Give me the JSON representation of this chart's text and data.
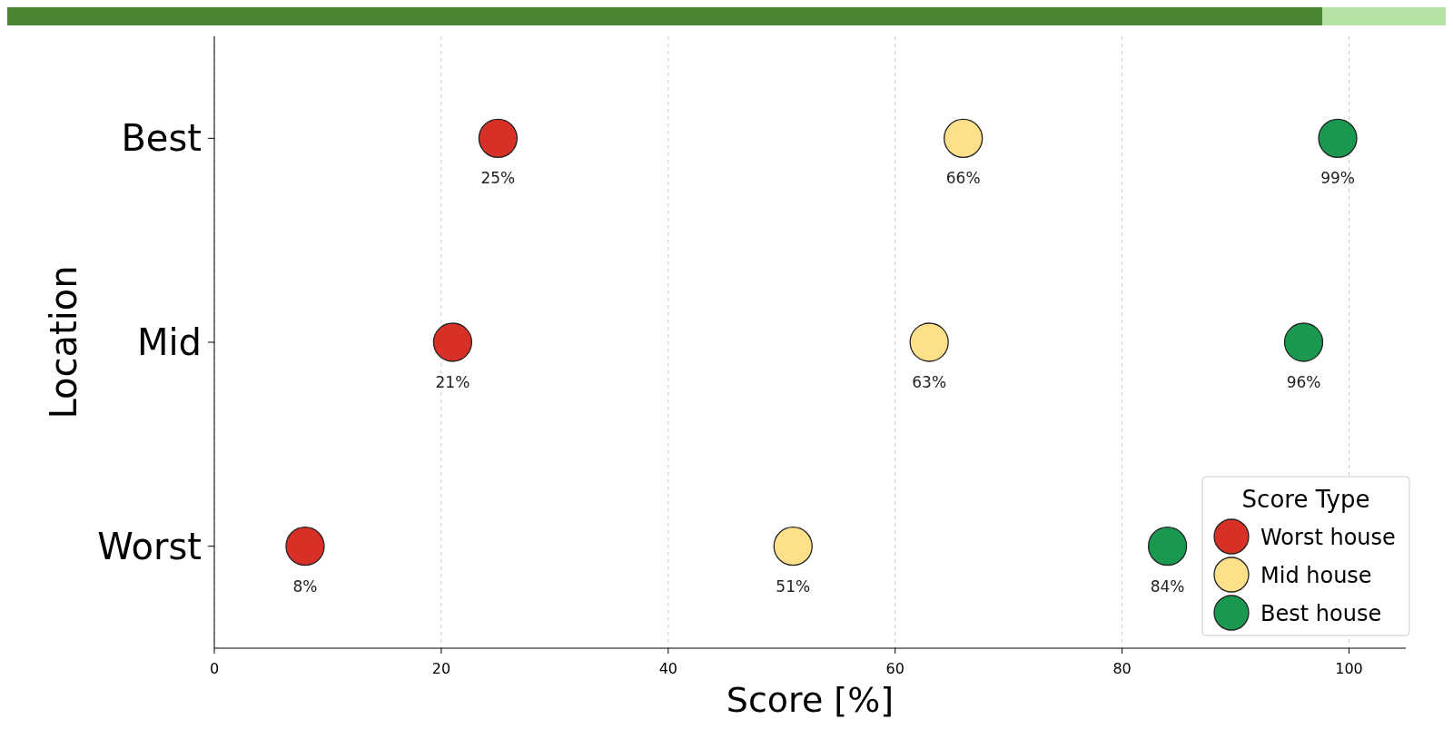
{
  "chart_data": {
    "type": "scatter",
    "orientation": "horizontal",
    "xlabel": "Score [%]",
    "ylabel": "Location",
    "legend_title": "Score Type",
    "categories": [
      "Best",
      "Mid",
      "Worst"
    ],
    "series": [
      {
        "name": "Worst house",
        "color": "#d73027",
        "values": [
          25,
          21,
          8
        ],
        "value_labels": [
          "25%",
          "21%",
          "8%"
        ]
      },
      {
        "name": "Mid house",
        "color": "#fee08b",
        "values": [
          66,
          63,
          51
        ],
        "value_labels": [
          "66%",
          "63%",
          "51%"
        ]
      },
      {
        "name": "Best house",
        "color": "#1a9850",
        "values": [
          99,
          96,
          84
        ],
        "value_labels": [
          "99%",
          "96%",
          "84%"
        ]
      }
    ],
    "xlim": [
      0,
      105
    ],
    "xticks": [
      0,
      20,
      40,
      60,
      80,
      100
    ],
    "grid": "x",
    "legend": "bottom right",
    "marker": "circle"
  }
}
